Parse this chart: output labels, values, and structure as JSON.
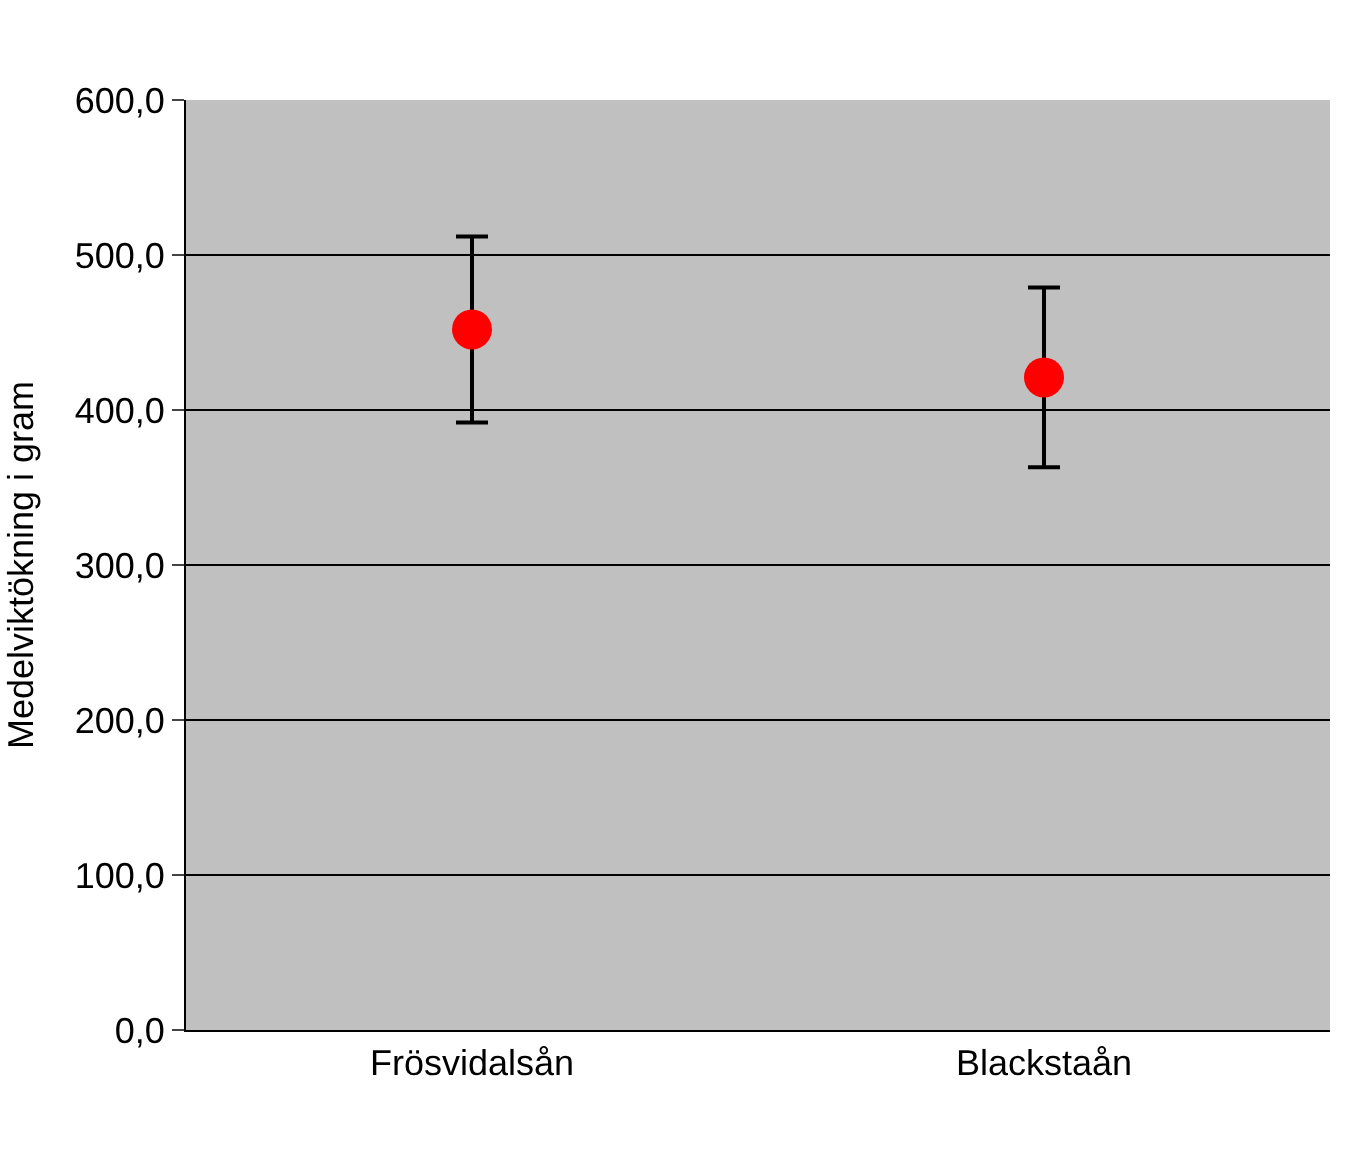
{
  "chart_data": {
    "type": "scatter",
    "ylabel": "Medelviktökning i gram",
    "categories": [
      "Frösvidalsån",
      "Blackstaån"
    ],
    "series": [
      {
        "color": "#ff0000",
        "values": [
          452,
          421
        ],
        "errors": [
          60,
          58
        ]
      }
    ],
    "ylim": [
      0,
      600
    ],
    "yticks": [
      {
        "value": 0,
        "label": "0,0"
      },
      {
        "value": 100,
        "label": "100,0"
      },
      {
        "value": 200,
        "label": "200,0"
      },
      {
        "value": 300,
        "label": "300,0"
      },
      {
        "value": 400,
        "label": "400,0"
      },
      {
        "value": 500,
        "label": "500,0"
      },
      {
        "value": 600,
        "label": "600,0"
      }
    ],
    "grid": "y",
    "marker": "circle"
  }
}
